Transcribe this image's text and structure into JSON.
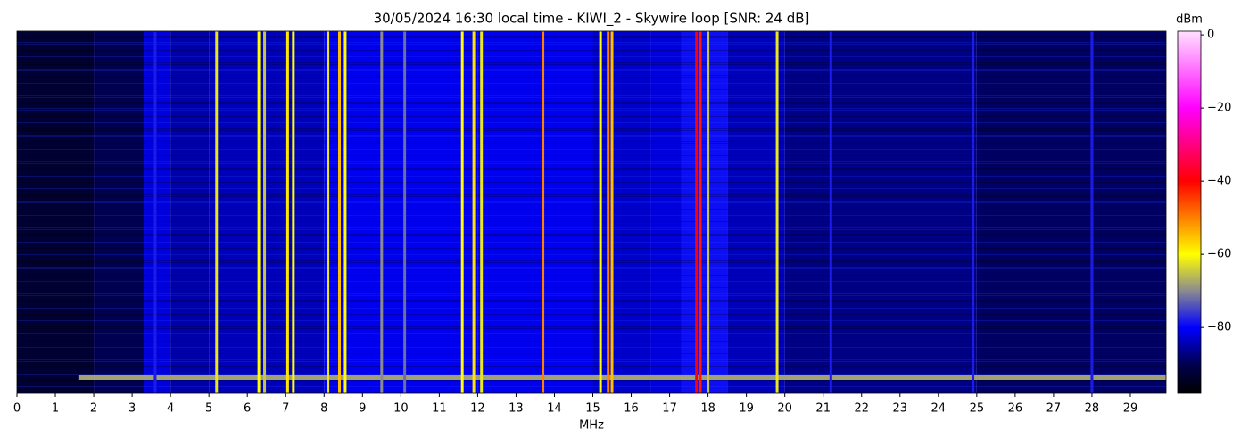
{
  "chart_data": {
    "type": "spectrogram",
    "title": "30/05/2024 16:30 local time - KIWI_2 - Skywire loop [SNR: 24 dB]",
    "x_label": "MHz",
    "colorbar_label": "dBm",
    "xlim": [
      0,
      29.93
    ],
    "xticks": [
      0,
      1,
      2,
      3,
      4,
      5,
      6,
      7,
      8,
      9,
      10,
      11,
      12,
      13,
      14,
      15,
      16,
      17,
      18,
      19,
      20,
      21,
      22,
      23,
      24,
      25,
      26,
      27,
      28,
      29
    ],
    "clim": [
      -98,
      1
    ],
    "cticks": [
      {
        "value": 0,
        "label": "0"
      },
      {
        "value": -20,
        "label": "−20"
      },
      {
        "value": -40,
        "label": "−40"
      },
      {
        "value": -60,
        "label": "−60"
      },
      {
        "value": -80,
        "label": "−80"
      }
    ],
    "colormap": [
      {
        "value": -98,
        "color": "#000000"
      },
      {
        "value": -90,
        "color": "#000050"
      },
      {
        "value": -80,
        "color": "#0000ff"
      },
      {
        "value": -70,
        "color": "#8a8a90"
      },
      {
        "value": -60,
        "color": "#ffff00"
      },
      {
        "value": -40,
        "color": "#ff0000"
      },
      {
        "value": -20,
        "color": "#ff00ff"
      },
      {
        "value": 1,
        "color": "#ffe0ff"
      }
    ],
    "floor": {
      "edges": [
        0,
        2,
        3.3,
        4,
        5,
        8,
        12,
        15,
        16.5,
        17.3,
        18.5,
        20,
        25,
        29.93
      ],
      "levels": [
        -93,
        -90,
        -82,
        -85,
        -84,
        -81,
        -81,
        -83,
        -82,
        -79,
        -84,
        -87,
        -89
      ]
    },
    "burst": {
      "start": 1.6,
      "end": 29.93,
      "level": -68
    },
    "signals": [
      {
        "freq": 3.6,
        "level": -78
      },
      {
        "freq": 5.2,
        "level": -62
      },
      {
        "freq": 6.3,
        "level": -60
      },
      {
        "freq": 6.45,
        "level": -65
      },
      {
        "freq": 7.05,
        "level": -58
      },
      {
        "freq": 7.2,
        "level": -60
      },
      {
        "freq": 8.1,
        "level": -62
      },
      {
        "freq": 8.4,
        "level": -55
      },
      {
        "freq": 8.55,
        "level": -60
      },
      {
        "freq": 9.5,
        "level": -70
      },
      {
        "freq": 10.1,
        "level": -72
      },
      {
        "freq": 11.6,
        "level": -60
      },
      {
        "freq": 11.9,
        "level": -58
      },
      {
        "freq": 12.1,
        "level": -62
      },
      {
        "freq": 13.7,
        "level": -50
      },
      {
        "freq": 15.2,
        "level": -60
      },
      {
        "freq": 15.4,
        "level": -50
      },
      {
        "freq": 15.5,
        "level": -55
      },
      {
        "freq": 17.7,
        "level": -40
      },
      {
        "freq": 17.8,
        "level": -42
      },
      {
        "freq": 18.0,
        "level": -65
      },
      {
        "freq": 19.8,
        "level": -62
      },
      {
        "freq": 21.2,
        "level": -78
      },
      {
        "freq": 24.9,
        "level": -78
      },
      {
        "freq": 28.0,
        "level": -78
      }
    ]
  }
}
